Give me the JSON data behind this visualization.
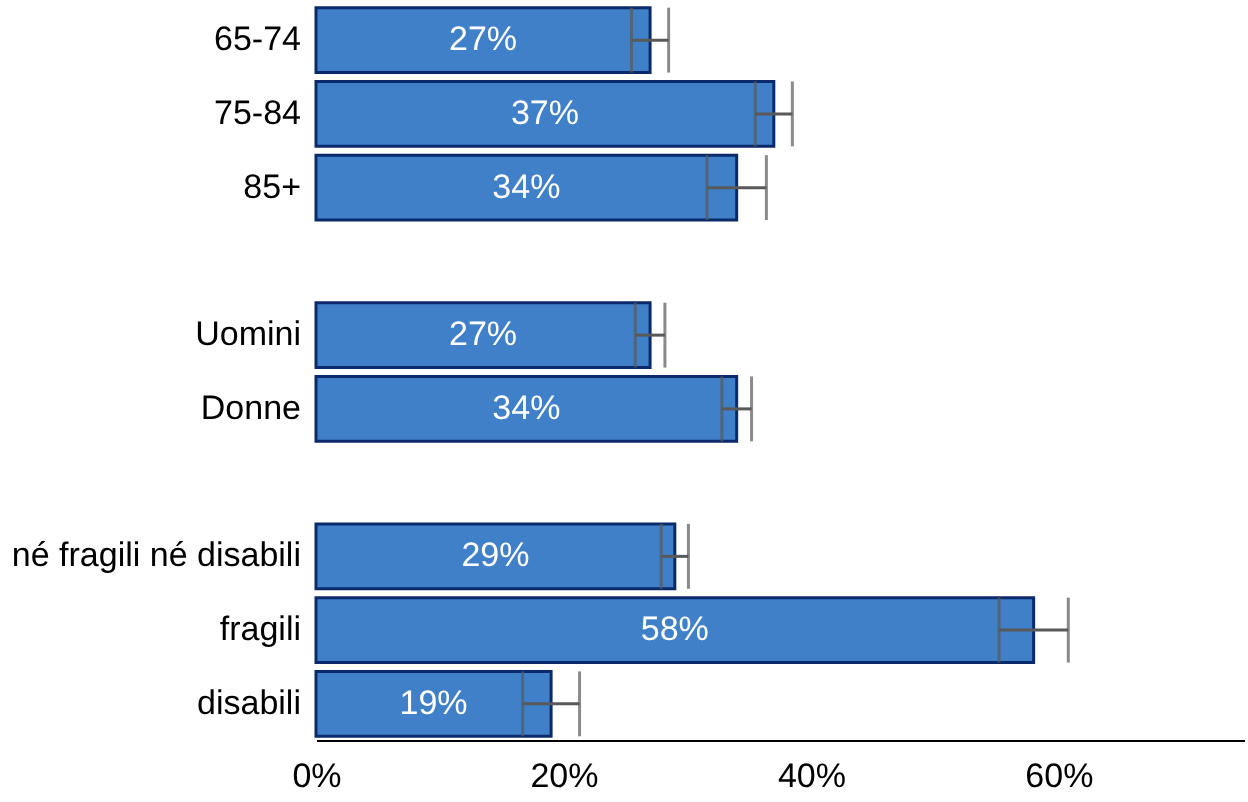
{
  "chart_data": {
    "type": "bar",
    "orientation": "horizontal",
    "categories": [
      "65-74",
      "75-84",
      "85+",
      null,
      "Uomini",
      "Donne",
      null,
      "né fragili né disabili",
      "fragili",
      "disabili"
    ],
    "values": [
      27,
      37,
      34,
      null,
      27,
      34,
      null,
      29,
      58,
      19
    ],
    "value_labels": [
      "27%",
      "37%",
      "34%",
      null,
      "27%",
      "34%",
      null,
      "29%",
      "58%",
      "19%"
    ],
    "errors": [
      1.5,
      1.5,
      2.4,
      null,
      1.2,
      1.2,
      null,
      1.1,
      2.8,
      2.3
    ],
    "color": "#3f80c8",
    "xlim": [
      0,
      75
    ],
    "xticks": [
      {
        "value": 0,
        "label": "0%"
      },
      {
        "value": 20,
        "label": "20%"
      },
      {
        "value": 40,
        "label": "40%"
      },
      {
        "value": 60,
        "label": "60%"
      }
    ],
    "grid": false
  }
}
